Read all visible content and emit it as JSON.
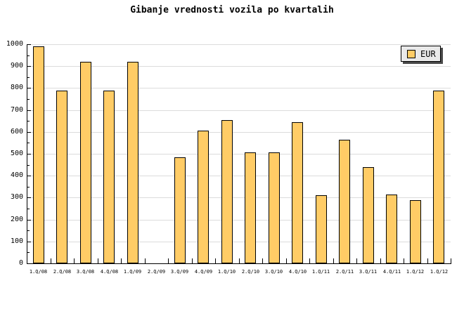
{
  "title": "Gibanje vrednosti vozila po kvartalih",
  "legend": {
    "label": "EUR"
  },
  "colors": {
    "background": "#FFFFFF",
    "bar_fill": "#FFCC66",
    "bar_border": "#000000",
    "grid": "#DCDCDC",
    "axis": "#000000",
    "text": "#000000",
    "legend_bg": "#E9E9E9",
    "legend_border": "#000000",
    "legend_shadow": "#4A4A4A"
  },
  "chart_data": {
    "type": "bar",
    "title": "Gibanje vrednosti vozila po kvartalih",
    "categories": [
      "1.Q/08",
      "2.Q/08",
      "3.Q/08",
      "4.Q/08",
      "1.Q/09",
      "2.Q/09",
      "3.Q/09",
      "4.Q/09",
      "1.Q/10",
      "2.Q/10",
      "3.Q/10",
      "4.Q/10",
      "1.Q/11",
      "2.Q/11",
      "3.Q/11",
      "4.Q/11",
      "1.Q/12",
      "1.Q/12"
    ],
    "series": [
      {
        "name": "EUR",
        "values": [
          990,
          790,
          920,
          790,
          920,
          null,
          485,
          605,
          655,
          505,
          505,
          645,
          310,
          565,
          440,
          315,
          290,
          790
        ]
      }
    ],
    "xlabel": "",
    "ylabel": "",
    "ylim": [
      0,
      1000
    ],
    "ytick_major": 100,
    "ytick_minor": 50,
    "ytick_labels": [
      "0",
      "100",
      "200",
      "300",
      "400",
      "500",
      "600",
      "700",
      "800",
      "900",
      "1000"
    ],
    "grid": "horizontal-major",
    "legend_position": "top-right",
    "note_empty_category": "2.Q/09"
  }
}
